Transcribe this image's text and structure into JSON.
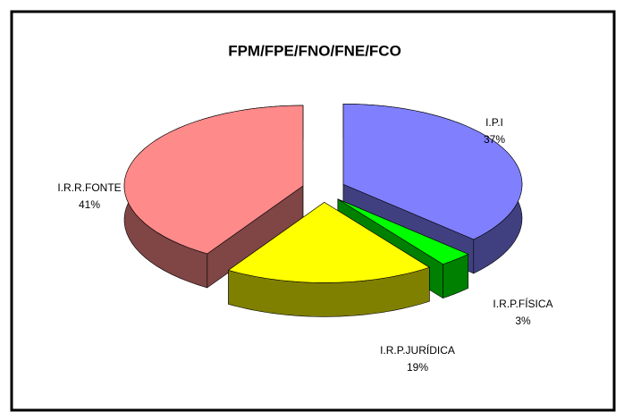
{
  "chart_data": {
    "type": "pie3d",
    "title": "FPM/FPE/FNO/FNE/FCO",
    "categories": [
      "I.P.I",
      "I.R.P.FÍSICA",
      "I.R.P.JURÍDICA",
      "I.R.R.FONTE"
    ],
    "values": [
      37,
      3,
      19,
      41
    ],
    "value_labels": [
      "37%",
      "3%",
      "19%",
      "41%"
    ],
    "colors": [
      "#8080ff",
      "#00ff00",
      "#ffff00",
      "#ff8a8a"
    ]
  }
}
